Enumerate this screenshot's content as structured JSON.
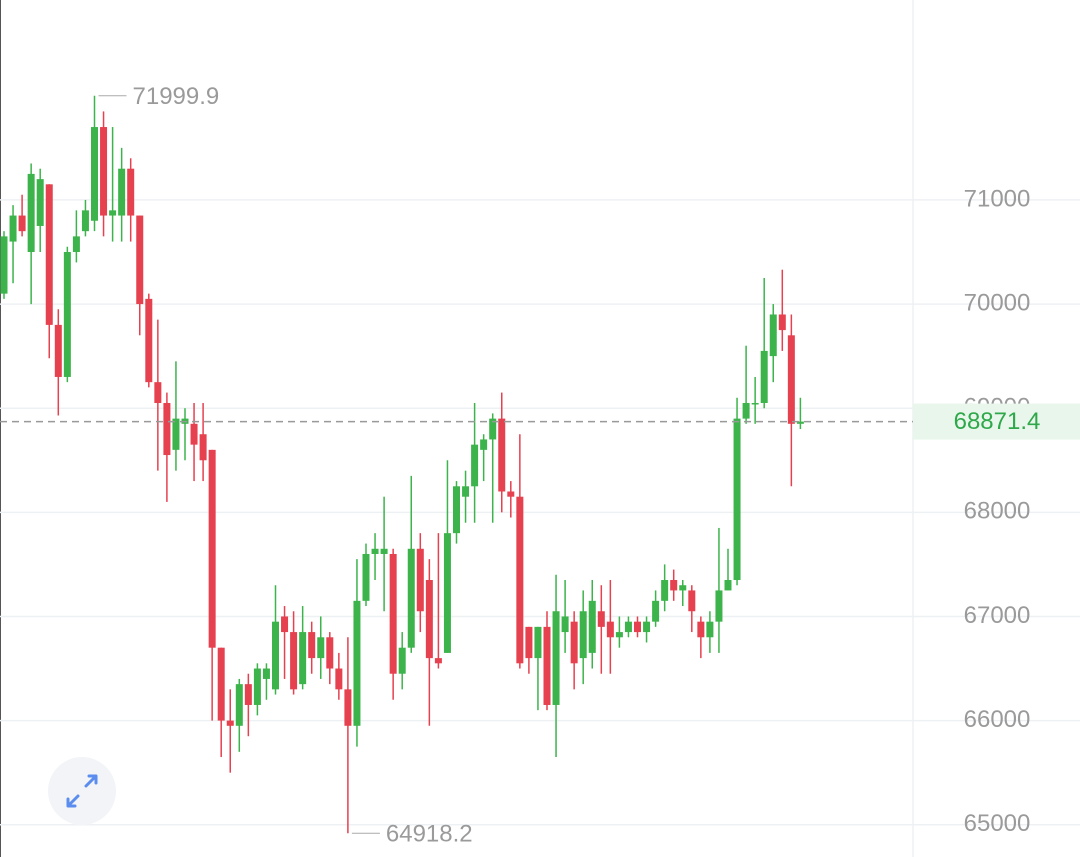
{
  "chart_data": {
    "type": "candlestick",
    "open": [
      70100,
      70600,
      70850,
      70500,
      70750,
      71150,
      69800,
      69300,
      70500,
      70700,
      70800,
      71700,
      70850,
      70850,
      71300,
      70850,
      70050,
      69250,
      69050,
      68600,
      68850,
      68850,
      68750,
      68600,
      66700,
      66000,
      65950,
      66350,
      66150,
      66400,
      66300,
      67000,
      66850,
      66350,
      66850,
      66600,
      66800,
      66500,
      66300,
      65950,
      67150,
      67600,
      67600,
      67600,
      66450,
      66700,
      67650,
      67350,
      66600,
      66650,
      67800,
      68150,
      68250,
      68600,
      68700,
      68900,
      68200,
      68150,
      66900,
      66600,
      66900,
      66150,
      66850,
      66950,
      66600,
      66650,
      67050,
      66950,
      66800,
      66850,
      66950,
      66850,
      66950,
      67150,
      67350,
      67250,
      67250,
      66950,
      66800,
      66950,
      67250,
      67350,
      68900,
      69050,
      69050,
      69500,
      69900,
      69700,
      68850
    ],
    "high": [
      70700,
      70950,
      71050,
      71350,
      71300,
      71150,
      69950,
      70550,
      70900,
      71000,
      71999.9,
      71850,
      71700,
      71500,
      71400,
      70850,
      70100,
      69850,
      69150,
      69450,
      69000,
      69050,
      69050,
      68600,
      66700,
      66300,
      66400,
      66450,
      66550,
      66550,
      67300,
      67100,
      67050,
      67100,
      66950,
      67000,
      66850,
      66650,
      66800,
      67550,
      67700,
      67800,
      68150,
      67650,
      66850,
      68350,
      67800,
      67550,
      67800,
      68500,
      68300,
      68400,
      69050,
      68750,
      68950,
      69150,
      68300,
      68750,
      66900,
      66900,
      67050,
      67400,
      67350,
      67050,
      67250,
      67350,
      67300,
      67350,
      67000,
      67000,
      67000,
      67000,
      67250,
      67500,
      67450,
      67350,
      67300,
      67000,
      67050,
      67850,
      67650,
      69100,
      69600,
      69300,
      70250,
      70000,
      70330,
      69900,
      69100
    ],
    "low": [
      70050,
      70200,
      70650,
      70000,
      70500,
      69480,
      68930,
      69250,
      70400,
      70650,
      70700,
      70650,
      70600,
      70600,
      70600,
      69700,
      69200,
      68400,
      68100,
      68400,
      68500,
      68300,
      68300,
      66000,
      65650,
      65500,
      65700,
      65850,
      66050,
      66200,
      66250,
      66400,
      66250,
      66300,
      66450,
      66400,
      66350,
      66200,
      64918.2,
      65750,
      67100,
      67350,
      67050,
      66200,
      66300,
      66650,
      66850,
      65950,
      66500,
      66650,
      67700,
      67900,
      67900,
      68300,
      67900,
      68000,
      67950,
      66500,
      66450,
      66100,
      66100,
      65650,
      66650,
      66300,
      66350,
      66500,
      66450,
      66450,
      66700,
      66800,
      66800,
      66750,
      66900,
      67050,
      67150,
      67100,
      66850,
      66600,
      66650,
      66650,
      67250,
      67300,
      68850,
      68850,
      69000,
      69250,
      69550,
      68250,
      68800
    ],
    "close": [
      70650,
      70850,
      70700,
      71250,
      71200,
      69800,
      69300,
      70500,
      70650,
      70900,
      71700,
      70850,
      70900,
      71300,
      70850,
      70000,
      69250,
      69050,
      68550,
      68900,
      68900,
      68650,
      68500,
      66700,
      66000,
      65950,
      66350,
      66150,
      66500,
      66500,
      66950,
      66850,
      66300,
      66850,
      66600,
      66800,
      66500,
      66300,
      65950,
      67150,
      67600,
      67650,
      67650,
      66450,
      66700,
      67650,
      67050,
      66600,
      66550,
      67800,
      68250,
      68250,
      68650,
      68700,
      68900,
      68200,
      68150,
      66550,
      66600,
      66900,
      66150,
      67050,
      67000,
      66550,
      67050,
      67150,
      66900,
      66800,
      66850,
      66950,
      66850,
      66950,
      67150,
      67350,
      67250,
      67300,
      67050,
      66800,
      66950,
      67250,
      67350,
      68900,
      69050,
      69050,
      69550,
      69900,
      69750,
      68850,
      68871.4
    ],
    "up_color": "#3cb44b",
    "down_color": "#e5414f",
    "ylim": [
      64690,
      72920
    ],
    "yticks": [
      65000,
      66000,
      67000,
      68000,
      69000,
      70000,
      71000
    ],
    "grid": true
  }
}
